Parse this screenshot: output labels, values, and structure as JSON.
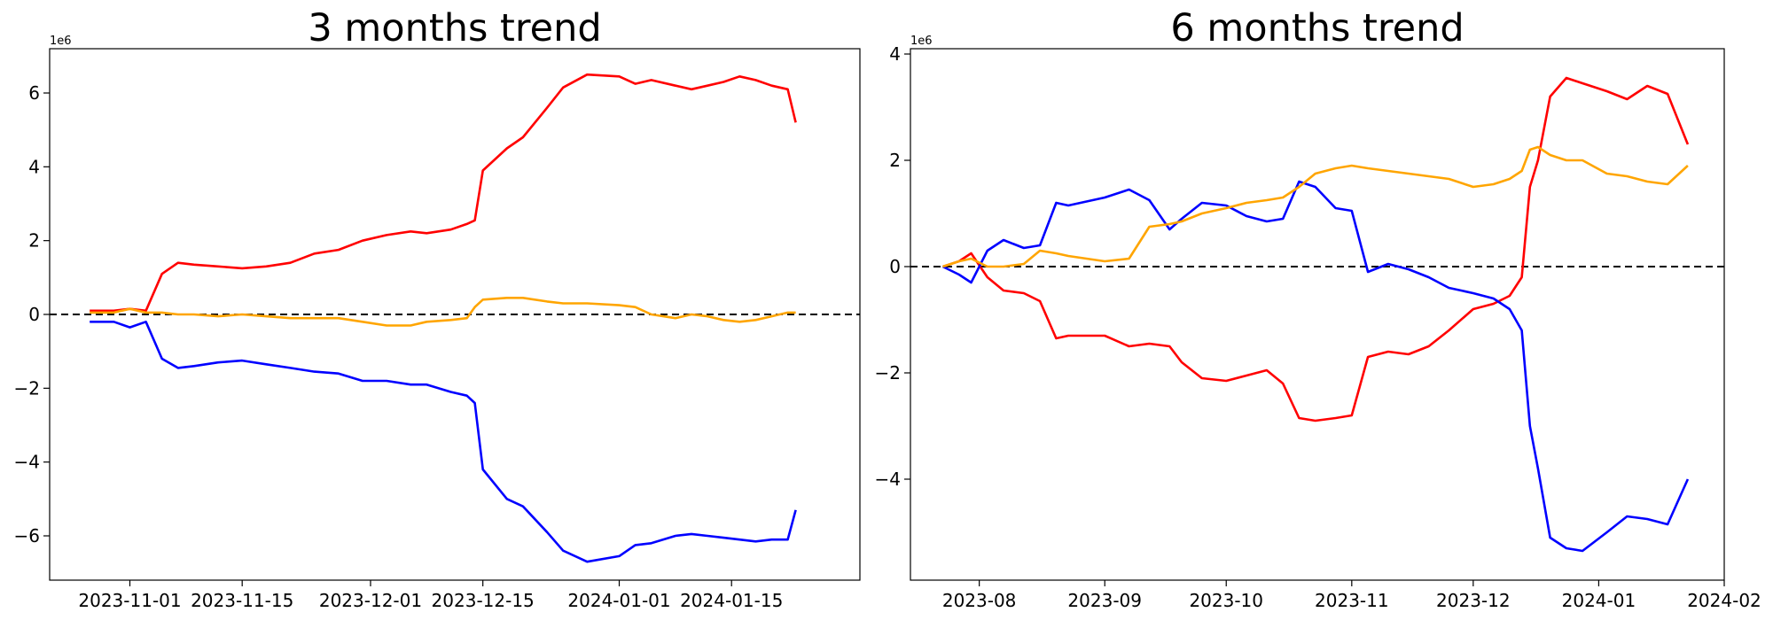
{
  "chart_data": [
    {
      "type": "line",
      "title": "3 months trend",
      "xlabel": "",
      "ylabel": "",
      "y_offset_label": "1e6",
      "y_scale_factor": 1000000,
      "xlim": [
        "2023-10-22",
        "2024-01-31"
      ],
      "ylim": [
        -7.2,
        7.2
      ],
      "x_ticks": [
        "2023-11-01",
        "2023-11-15",
        "2023-12-01",
        "2023-12-15",
        "2024-01-01",
        "2024-01-15"
      ],
      "y_ticks": [
        -6,
        -4,
        -2,
        0,
        2,
        4,
        6
      ],
      "y_tick_labels": [
        "−6",
        "−4",
        "−2",
        "0",
        "2",
        "4",
        "6"
      ],
      "zero_line": {
        "y": 0,
        "style": "dashed",
        "color": "#000000"
      },
      "grid": false,
      "series": [
        {
          "color": "#ff0000",
          "x": [
            "2023-10-27",
            "2023-10-30",
            "2023-11-01",
            "2023-11-03",
            "2023-11-05",
            "2023-11-07",
            "2023-11-09",
            "2023-11-12",
            "2023-11-15",
            "2023-11-18",
            "2023-11-21",
            "2023-11-24",
            "2023-11-27",
            "2023-11-30",
            "2023-12-03",
            "2023-12-06",
            "2023-12-08",
            "2023-12-11",
            "2023-12-13",
            "2023-12-14",
            "2023-12-15",
            "2023-12-18",
            "2023-12-20",
            "2023-12-23",
            "2023-12-25",
            "2023-12-28",
            "2024-01-01",
            "2024-01-03",
            "2024-01-05",
            "2024-01-08",
            "2024-01-10",
            "2024-01-12",
            "2024-01-14",
            "2024-01-16",
            "2024-01-18",
            "2024-01-20",
            "2024-01-22",
            "2024-01-23"
          ],
          "values": [
            0.1,
            0.1,
            0.15,
            0.1,
            1.1,
            1.4,
            1.35,
            1.3,
            1.25,
            1.3,
            1.4,
            1.65,
            1.75,
            2.0,
            2.15,
            2.25,
            2.2,
            2.3,
            2.45,
            2.55,
            3.9,
            4.5,
            4.8,
            5.6,
            6.15,
            6.5,
            6.45,
            6.25,
            6.35,
            6.2,
            6.1,
            6.2,
            6.3,
            6.45,
            6.35,
            6.2,
            6.1,
            5.2
          ]
        },
        {
          "color": "#0000ff",
          "x": [
            "2023-10-27",
            "2023-10-30",
            "2023-11-01",
            "2023-11-03",
            "2023-11-05",
            "2023-11-07",
            "2023-11-09",
            "2023-11-12",
            "2023-11-15",
            "2023-11-18",
            "2023-11-21",
            "2023-11-24",
            "2023-11-27",
            "2023-11-30",
            "2023-12-03",
            "2023-12-06",
            "2023-12-08",
            "2023-12-11",
            "2023-12-13",
            "2023-12-14",
            "2023-12-15",
            "2023-12-18",
            "2023-12-20",
            "2023-12-23",
            "2023-12-25",
            "2023-12-28",
            "2024-01-01",
            "2024-01-03",
            "2024-01-05",
            "2024-01-08",
            "2024-01-10",
            "2024-01-12",
            "2024-01-14",
            "2024-01-16",
            "2024-01-18",
            "2024-01-20",
            "2024-01-22",
            "2024-01-23"
          ],
          "values": [
            -0.2,
            -0.2,
            -0.35,
            -0.2,
            -1.2,
            -1.45,
            -1.4,
            -1.3,
            -1.25,
            -1.35,
            -1.45,
            -1.55,
            -1.6,
            -1.8,
            -1.8,
            -1.9,
            -1.9,
            -2.1,
            -2.2,
            -2.4,
            -4.2,
            -5.0,
            -5.2,
            -5.9,
            -6.4,
            -6.7,
            -6.55,
            -6.25,
            -6.2,
            -6.0,
            -5.95,
            -6.0,
            -6.05,
            -6.1,
            -6.15,
            -6.1,
            -6.1,
            -5.3
          ]
        },
        {
          "color": "#ffa500",
          "x": [
            "2023-10-27",
            "2023-10-30",
            "2023-11-01",
            "2023-11-03",
            "2023-11-05",
            "2023-11-07",
            "2023-11-09",
            "2023-11-12",
            "2023-11-15",
            "2023-11-18",
            "2023-11-21",
            "2023-11-24",
            "2023-11-27",
            "2023-11-30",
            "2023-12-03",
            "2023-12-06",
            "2023-12-08",
            "2023-12-11",
            "2023-12-13",
            "2023-12-14",
            "2023-12-15",
            "2023-12-18",
            "2023-12-20",
            "2023-12-23",
            "2023-12-25",
            "2023-12-28",
            "2024-01-01",
            "2024-01-03",
            "2024-01-05",
            "2024-01-08",
            "2024-01-10",
            "2024-01-12",
            "2024-01-14",
            "2024-01-16",
            "2024-01-18",
            "2024-01-20",
            "2024-01-22",
            "2024-01-23"
          ],
          "values": [
            0.05,
            0.05,
            0.15,
            0.05,
            0.05,
            0.0,
            0.0,
            -0.05,
            0.0,
            -0.05,
            -0.1,
            -0.1,
            -0.1,
            -0.2,
            -0.3,
            -0.3,
            -0.2,
            -0.15,
            -0.1,
            0.2,
            0.4,
            0.45,
            0.45,
            0.35,
            0.3,
            0.3,
            0.25,
            0.2,
            0.0,
            -0.1,
            0.0,
            -0.05,
            -0.15,
            -0.2,
            -0.15,
            -0.05,
            0.05,
            0.05
          ]
        }
      ]
    },
    {
      "type": "line",
      "title": "6 months trend",
      "xlabel": "",
      "ylabel": "",
      "y_offset_label": "1e6",
      "y_scale_factor": 1000000,
      "xlim": [
        "2023-07-15",
        "2024-02-01"
      ],
      "ylim": [
        -5.9,
        4.1
      ],
      "x_ticks": [
        "2023-08",
        "2023-09",
        "2023-10",
        "2023-11",
        "2023-12",
        "2024-01",
        "2024-02"
      ],
      "y_ticks": [
        -4,
        -2,
        0,
        2,
        4
      ],
      "y_tick_labels": [
        "−4",
        "−2",
        "0",
        "2",
        "4"
      ],
      "zero_line": {
        "y": 0,
        "style": "dashed",
        "color": "#000000"
      },
      "grid": false,
      "series": [
        {
          "color": "#ff0000",
          "x": [
            "2023-07-23",
            "2023-07-27",
            "2023-07-30",
            "2023-08-03",
            "2023-08-07",
            "2023-08-12",
            "2023-08-16",
            "2023-08-20",
            "2023-08-23",
            "2023-09-01",
            "2023-09-07",
            "2023-09-12",
            "2023-09-17",
            "2023-09-20",
            "2023-09-25",
            "2023-10-01",
            "2023-10-06",
            "2023-10-11",
            "2023-10-15",
            "2023-10-19",
            "2023-10-23",
            "2023-10-28",
            "2023-11-01",
            "2023-11-05",
            "2023-11-10",
            "2023-11-15",
            "2023-11-20",
            "2023-11-25",
            "2023-12-01",
            "2023-12-06",
            "2023-12-10",
            "2023-12-13",
            "2023-12-15",
            "2023-12-17",
            "2023-12-20",
            "2023-12-24",
            "2023-12-28",
            "2024-01-03",
            "2024-01-08",
            "2024-01-13",
            "2024-01-18",
            "2024-01-23"
          ],
          "values": [
            0.0,
            0.1,
            0.25,
            -0.2,
            -0.45,
            -0.5,
            -0.65,
            -1.35,
            -1.3,
            -1.3,
            -1.5,
            -1.45,
            -1.5,
            -1.8,
            -2.1,
            -2.15,
            -2.05,
            -1.95,
            -2.2,
            -2.85,
            -2.9,
            -2.85,
            -2.8,
            -1.7,
            -1.6,
            -1.65,
            -1.5,
            -1.2,
            -0.8,
            -0.7,
            -0.55,
            -0.2,
            1.5,
            2.0,
            3.2,
            3.55,
            3.45,
            3.3,
            3.15,
            3.4,
            3.25,
            2.3
          ]
        },
        {
          "color": "#0000ff",
          "x": [
            "2023-07-23",
            "2023-07-27",
            "2023-07-30",
            "2023-08-03",
            "2023-08-07",
            "2023-08-12",
            "2023-08-16",
            "2023-08-20",
            "2023-08-23",
            "2023-09-01",
            "2023-09-07",
            "2023-09-12",
            "2023-09-17",
            "2023-09-20",
            "2023-09-25",
            "2023-10-01",
            "2023-10-06",
            "2023-10-11",
            "2023-10-15",
            "2023-10-19",
            "2023-10-23",
            "2023-10-28",
            "2023-11-01",
            "2023-11-05",
            "2023-11-10",
            "2023-11-15",
            "2023-11-20",
            "2023-11-25",
            "2023-12-01",
            "2023-12-06",
            "2023-12-10",
            "2023-12-13",
            "2023-12-15",
            "2023-12-17",
            "2023-12-20",
            "2023-12-24",
            "2023-12-28",
            "2024-01-03",
            "2024-01-08",
            "2024-01-13",
            "2024-01-18",
            "2024-01-23"
          ],
          "values": [
            0.0,
            -0.15,
            -0.3,
            0.3,
            0.5,
            0.35,
            0.4,
            1.2,
            1.15,
            1.3,
            1.45,
            1.25,
            0.7,
            0.9,
            1.2,
            1.15,
            0.95,
            0.85,
            0.9,
            1.6,
            1.5,
            1.1,
            1.05,
            -0.1,
            0.05,
            -0.05,
            -0.2,
            -0.4,
            -0.5,
            -0.6,
            -0.8,
            -1.2,
            -3.0,
            -3.8,
            -5.1,
            -5.3,
            -5.35,
            -5.0,
            -4.7,
            -4.75,
            -4.85,
            -4.0
          ]
        },
        {
          "color": "#ffa500",
          "x": [
            "2023-07-23",
            "2023-07-27",
            "2023-07-30",
            "2023-08-03",
            "2023-08-07",
            "2023-08-12",
            "2023-08-16",
            "2023-08-20",
            "2023-08-23",
            "2023-09-01",
            "2023-09-07",
            "2023-09-12",
            "2023-09-17",
            "2023-09-20",
            "2023-09-25",
            "2023-10-01",
            "2023-10-06",
            "2023-10-11",
            "2023-10-15",
            "2023-10-19",
            "2023-10-23",
            "2023-10-28",
            "2023-11-01",
            "2023-11-05",
            "2023-11-10",
            "2023-11-15",
            "2023-11-20",
            "2023-11-25",
            "2023-12-01",
            "2023-12-06",
            "2023-12-10",
            "2023-12-13",
            "2023-12-15",
            "2023-12-17",
            "2023-12-20",
            "2023-12-24",
            "2023-12-28",
            "2024-01-03",
            "2024-01-08",
            "2024-01-13",
            "2024-01-18",
            "2024-01-23"
          ],
          "values": [
            0.0,
            0.1,
            0.15,
            0.0,
            0.0,
            0.05,
            0.3,
            0.25,
            0.2,
            0.1,
            0.15,
            0.75,
            0.8,
            0.85,
            1.0,
            1.1,
            1.2,
            1.25,
            1.3,
            1.5,
            1.75,
            1.85,
            1.9,
            1.85,
            1.8,
            1.75,
            1.7,
            1.65,
            1.5,
            1.55,
            1.65,
            1.8,
            2.2,
            2.25,
            2.1,
            2.0,
            2.0,
            1.75,
            1.7,
            1.6,
            1.55,
            1.9
          ]
        }
      ]
    }
  ]
}
